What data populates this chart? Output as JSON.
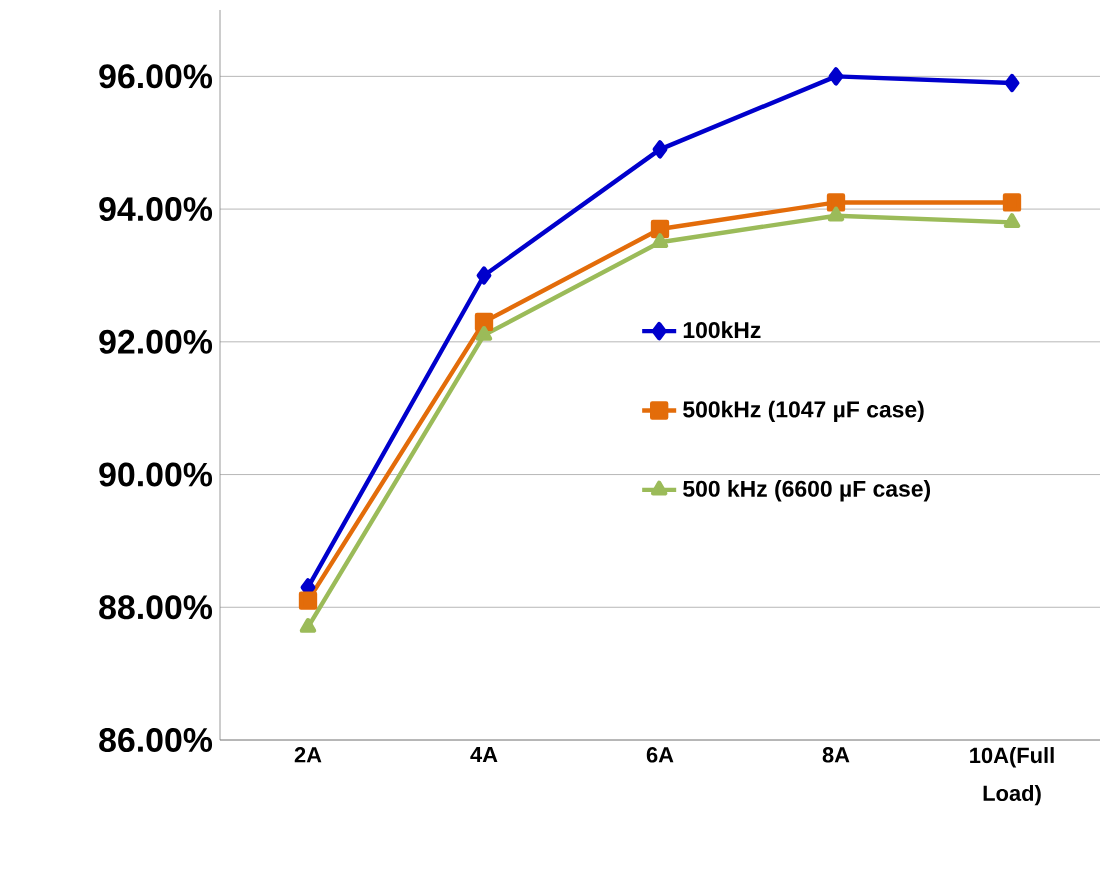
{
  "chart_data": {
    "type": "line",
    "categories": [
      "2A",
      "4A",
      "6A",
      "8A",
      "10A(Full Load)"
    ],
    "series": [
      {
        "name": "100kHz",
        "color": "#0000cc",
        "marker": "diamond",
        "values": [
          88.3,
          93.0,
          94.9,
          96.0,
          95.9
        ]
      },
      {
        "name": "500kHz (1047 µF case)",
        "color": "#e36c0a",
        "marker": "square",
        "values": [
          88.1,
          92.3,
          93.7,
          94.1,
          94.1
        ]
      },
      {
        "name": "500 kHz (6600 µF case)",
        "color": "#9bbb59",
        "marker": "triangle",
        "values": [
          87.7,
          92.1,
          93.5,
          93.9,
          93.8
        ]
      }
    ],
    "ylim": [
      86,
      97
    ],
    "yticks": [
      {
        "value": 86,
        "label": "86.00%"
      },
      {
        "value": 88,
        "label": "88.00%"
      },
      {
        "value": 90,
        "label": "90.00%"
      },
      {
        "value": 92,
        "label": "92.00%"
      },
      {
        "value": 94,
        "label": "94.00%"
      },
      {
        "value": 96,
        "label": "96.00%"
      }
    ],
    "grid": "y",
    "legend": "right",
    "line_style": "solid"
  }
}
